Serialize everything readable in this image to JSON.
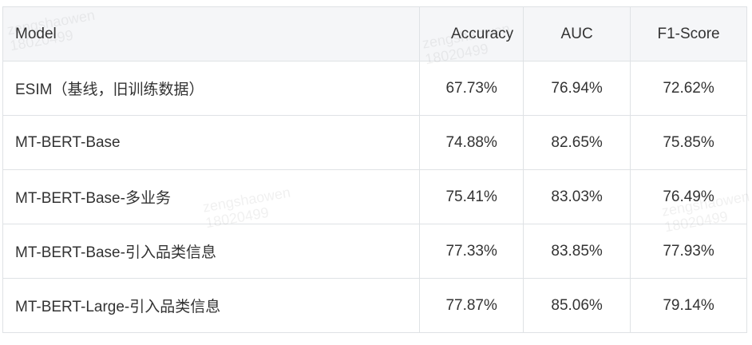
{
  "table": {
    "headers": [
      "Model",
      "Accuracy",
      "AUC",
      "F1-Score"
    ],
    "rows": [
      [
        "ESIM（基线，旧训练数据）",
        "67.73%",
        "76.94%",
        "72.62%"
      ],
      [
        "MT-BERT-Base",
        "74.88%",
        "82.65%",
        "75.85%"
      ],
      [
        "MT-BERT-Base-多业务",
        "75.41%",
        "83.03%",
        "76.49%"
      ],
      [
        "MT-BERT-Base-引入品类信息",
        "77.33%",
        "83.85%",
        "77.93%"
      ],
      [
        "MT-BERT-Large-引入品类信息",
        "77.87%",
        "85.06%",
        "79.14%"
      ]
    ]
  },
  "watermarks": [
    {
      "name": "zengshaowen",
      "id": "18020499"
    },
    {
      "name": "zengshaowen",
      "id": "18020499"
    },
    {
      "name": "zengshaowen",
      "id": "18020499"
    },
    {
      "name": "zengshaowen",
      "id": "18020499"
    }
  ]
}
